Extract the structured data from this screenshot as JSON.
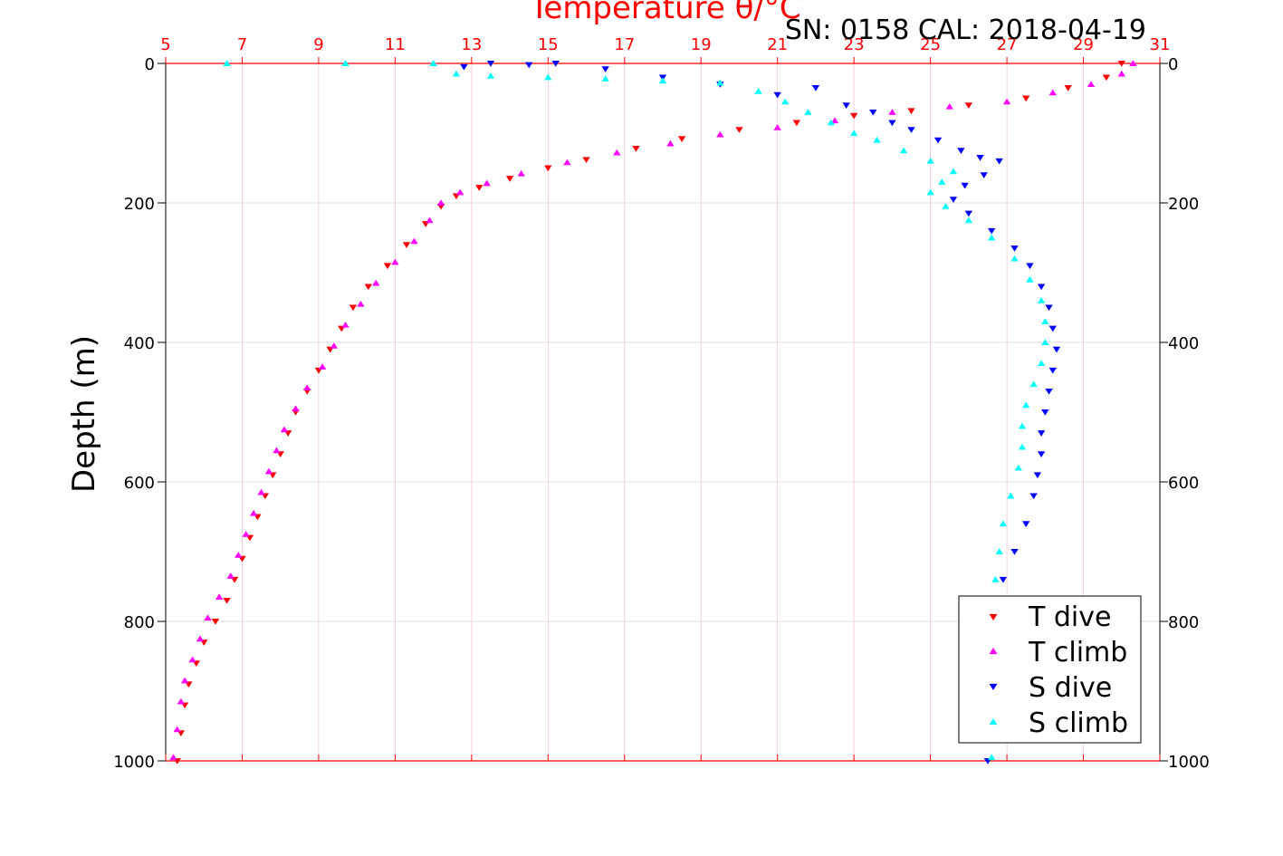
{
  "chart_data": {
    "type": "scatter",
    "title": "Temperature θ/°C",
    "annotation": "SN: 0158  CAL: 2018-04-19",
    "ylabel": "Depth (m)",
    "xlim": [
      5,
      31
    ],
    "ylim": [
      0,
      1000
    ],
    "y_inverted": true,
    "x_ticks": [
      "5",
      "7",
      "9",
      "11",
      "13",
      "15",
      "17",
      "19",
      "21",
      "23",
      "25",
      "27",
      "29",
      "31"
    ],
    "y_ticks": [
      "0",
      "200",
      "400",
      "600",
      "800",
      "1000"
    ],
    "grid": true,
    "legend_position": "bottom-right",
    "colors": {
      "axis_top": "#ff0000",
      "grid": "#dddddd",
      "t_dive": "#ff0000",
      "t_climb": "#ff00ff",
      "s_dive": "#0000ff",
      "s_climb": "#00ffff"
    },
    "series": [
      {
        "name": "T dive",
        "marker": "triangle-down",
        "color": "#ff0000",
        "x": [
          30.0,
          29.6,
          28.6,
          27.5,
          26.0,
          24.5,
          23.0,
          21.5,
          20.0,
          18.5,
          17.3,
          16.0,
          15.0,
          14.0,
          13.2,
          12.6,
          12.2,
          11.8,
          11.3,
          10.8,
          10.3,
          9.9,
          9.6,
          9.3,
          9.0,
          8.7,
          8.4,
          8.2,
          8.0,
          7.8,
          7.6,
          7.4,
          7.2,
          7.0,
          6.8,
          6.6,
          6.3,
          6.0,
          5.8,
          5.6,
          5.5,
          5.4,
          5.3
        ],
        "y": [
          0,
          20,
          35,
          50,
          60,
          68,
          75,
          85,
          95,
          108,
          122,
          138,
          150,
          165,
          178,
          190,
          205,
          230,
          260,
          290,
          320,
          350,
          380,
          410,
          440,
          470,
          500,
          530,
          560,
          590,
          620,
          650,
          680,
          710,
          740,
          770,
          800,
          830,
          860,
          890,
          920,
          960,
          1000
        ]
      },
      {
        "name": "T climb",
        "marker": "triangle-up",
        "color": "#ff00ff",
        "x": [
          30.3,
          30.0,
          29.2,
          28.2,
          27.0,
          25.5,
          24.0,
          22.5,
          21.0,
          19.5,
          18.2,
          16.8,
          15.5,
          14.3,
          13.4,
          12.7,
          12.2,
          11.9,
          11.5,
          11.0,
          10.5,
          10.1,
          9.7,
          9.4,
          9.1,
          8.7,
          8.4,
          8.1,
          7.9,
          7.7,
          7.5,
          7.3,
          7.1,
          6.9,
          6.7,
          6.4,
          6.1,
          5.9,
          5.7,
          5.5,
          5.4,
          5.3,
          5.2
        ],
        "y": [
          0,
          15,
          30,
          42,
          55,
          62,
          70,
          82,
          92,
          102,
          115,
          128,
          142,
          158,
          172,
          185,
          200,
          225,
          255,
          285,
          315,
          345,
          375,
          405,
          435,
          465,
          495,
          525,
          555,
          585,
          615,
          645,
          675,
          705,
          735,
          765,
          795,
          825,
          855,
          885,
          915,
          955,
          995
        ]
      },
      {
        "name": "S dive",
        "marker": "triangle-down",
        "color": "#0000ff",
        "x": [
          12.8,
          13.5,
          14.5,
          15.2,
          16.5,
          18.0,
          19.5,
          21.0,
          22.0,
          22.8,
          23.5,
          24.0,
          24.5,
          25.2,
          25.8,
          26.3,
          26.8,
          26.4,
          25.9,
          25.6,
          26.0,
          26.6,
          27.2,
          27.6,
          27.9,
          28.1,
          28.2,
          28.3,
          28.2,
          28.1,
          28.0,
          27.9,
          27.9,
          27.8,
          27.7,
          27.5,
          27.2,
          26.9,
          26.8,
          26.8,
          26.7,
          26.6,
          26.5
        ],
        "y": [
          5,
          0,
          2,
          0,
          8,
          20,
          30,
          45,
          35,
          60,
          70,
          85,
          95,
          110,
          125,
          135,
          140,
          160,
          175,
          195,
          215,
          240,
          265,
          290,
          320,
          350,
          380,
          410,
          440,
          470,
          500,
          530,
          560,
          590,
          620,
          660,
          700,
          740,
          780,
          830,
          900,
          960,
          1000
        ]
      },
      {
        "name": "S climb",
        "marker": "triangle-up",
        "color": "#00ffff",
        "x": [
          6.6,
          9.7,
          12.0,
          12.6,
          13.5,
          15.0,
          16.5,
          18.0,
          19.5,
          20.5,
          21.2,
          21.8,
          22.4,
          23.0,
          23.6,
          24.3,
          25.0,
          25.6,
          25.3,
          25.0,
          25.4,
          26.0,
          26.6,
          27.2,
          27.6,
          27.9,
          28.0,
          28.0,
          27.9,
          27.7,
          27.5,
          27.4,
          27.4,
          27.3,
          27.1,
          26.9,
          26.8,
          26.7,
          26.6,
          26.6,
          26.5,
          26.5,
          26.6
        ],
        "y": [
          0,
          0,
          0,
          15,
          18,
          20,
          22,
          25,
          28,
          40,
          55,
          70,
          85,
          100,
          110,
          125,
          140,
          155,
          170,
          185,
          205,
          225,
          250,
          280,
          310,
          340,
          370,
          400,
          430,
          460,
          490,
          520,
          550,
          580,
          620,
          660,
          700,
          740,
          780,
          830,
          880,
          940,
          995
        ]
      }
    ]
  }
}
